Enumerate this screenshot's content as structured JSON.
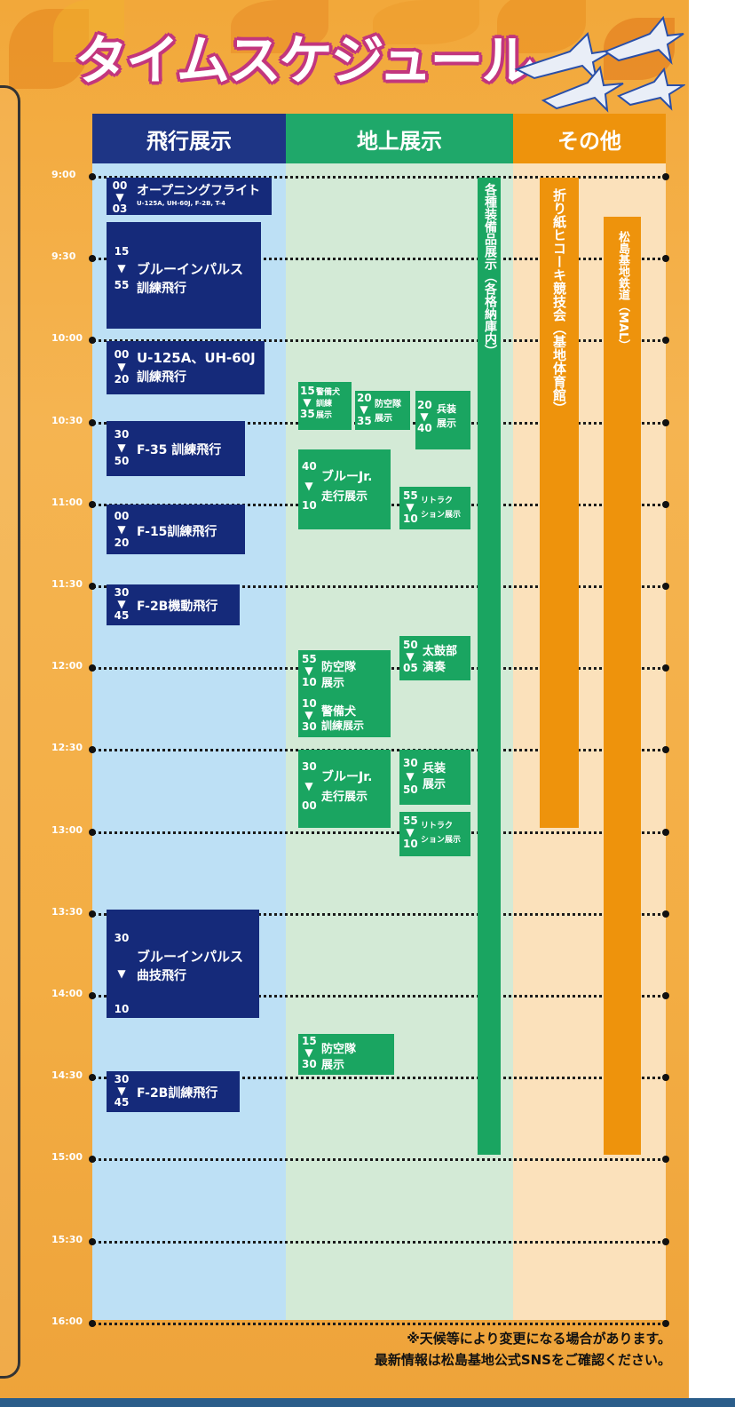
{
  "title": "タイムスケジュール",
  "columns": {
    "flight": "飛行展示",
    "ground": "地上展示",
    "other": "その他"
  },
  "times": [
    "9:00",
    "9:30",
    "10:00",
    "10:30",
    "11:00",
    "11:30",
    "12:00",
    "12:30",
    "13:00",
    "13:30",
    "14:00",
    "14:30",
    "15:00",
    "15:30",
    "16:00"
  ],
  "flight_events": [
    {
      "start": "00",
      "end": "03",
      "label": "オープニングフライト",
      "sub": "U-125A, UH-60J, F-2B, T-4"
    },
    {
      "start": "15",
      "end": "55",
      "label": "ブルーインパルス",
      "label2": "訓練飛行"
    },
    {
      "start": "00",
      "end": "20",
      "label": "U-125A、UH-60J",
      "label2": "訓練飛行"
    },
    {
      "start": "30",
      "end": "50",
      "label": "F-35 訓練飛行"
    },
    {
      "start": "00",
      "end": "20",
      "label": "F-15訓練飛行"
    },
    {
      "start": "30",
      "end": "45",
      "label": "F-2B機動飛行"
    },
    {
      "start": "30",
      "end": "10",
      "label": "ブルーインパルス",
      "label2": "曲技飛行"
    },
    {
      "start": "30",
      "end": "45",
      "label": "F-2B訓練飛行"
    }
  ],
  "ground_events": [
    {
      "start": "15",
      "end": "35",
      "label": "警備犬",
      "label2": "訓練",
      "label3": "展示"
    },
    {
      "start": "20",
      "end": "35",
      "label": "防空隊",
      "label2": "展示"
    },
    {
      "start": "20",
      "end": "40",
      "label": "兵装",
      "label2": "展示"
    },
    {
      "start": "40",
      "end": "10",
      "label": "ブルーJr.",
      "label2": "走行展示"
    },
    {
      "start": "55",
      "end": "10",
      "label": "リトラク",
      "label2": "ション展示"
    },
    {
      "start": "55",
      "end": "10",
      "label": "防空隊",
      "label2": "展示"
    },
    {
      "start": "50",
      "end": "05",
      "label": "太鼓部",
      "label2": "演奏"
    },
    {
      "start": "10",
      "end": "30",
      "label": "警備犬",
      "label2": "訓練展示"
    },
    {
      "start": "30",
      "end": "00",
      "label": "ブルーJr.",
      "label2": "走行展示"
    },
    {
      "start": "30",
      "end": "50",
      "label": "兵装",
      "label2": "展示"
    },
    {
      "start": "55",
      "end": "10",
      "label": "リトラク",
      "label2": "ション展示"
    },
    {
      "start": "15",
      "end": "30",
      "label": "防空隊",
      "label2": "展示"
    }
  ],
  "ground_long": "各種装備品展示（各格納庫内）",
  "other_events": [
    "折り紙ヒコーキ競技会（基地体育館）",
    "松島基地鉄道（MAL）"
  ],
  "note_line1": "※天候等により変更になる場合があります。",
  "note_line2": "最新情報は松島基地公式SNSをご確認ください。",
  "colors": {
    "flight_header": "#1e3585",
    "ground_header": "#1fa86a",
    "other_header": "#ee930c",
    "flight_bg": "#bde0f5",
    "ground_bg": "#d3ead6",
    "other_bg": "#fbe1bb",
    "title_outline": "#c2367d"
  }
}
